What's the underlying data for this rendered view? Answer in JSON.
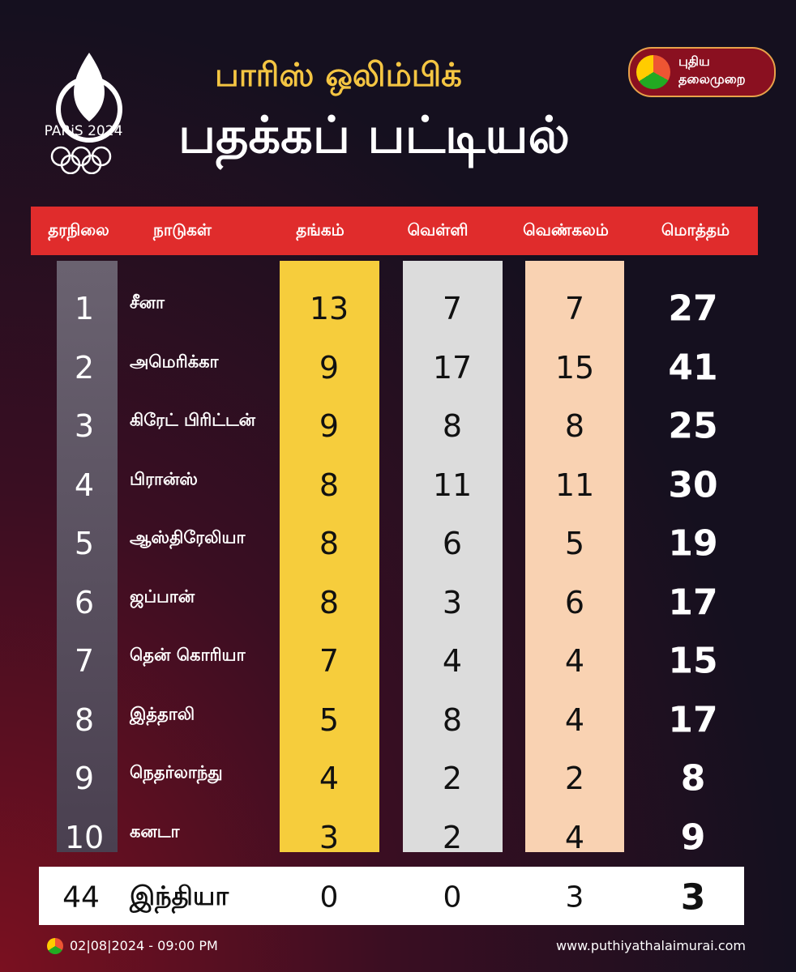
{
  "header": {
    "logo_text": "PARiS 2024",
    "title_line1": "பாரிஸ் ஒலிம்பிக்",
    "title_line2": "பதக்கப் பட்டியல்",
    "brand_line1": "புதிய",
    "brand_line2": "தலைமுறை"
  },
  "table": {
    "columns": [
      "தரநிலை",
      "நாடுகள்",
      "தங்கம்",
      "வெள்ளி",
      "வெண்கலம்",
      "மொத்தம்"
    ],
    "rows": [
      [
        1,
        "சீனா",
        13,
        7,
        7,
        27
      ],
      [
        2,
        "அமெரிக்கா",
        9,
        17,
        15,
        41
      ],
      [
        3,
        "கிரேட் பிரிட்டன்",
        9,
        8,
        8,
        25
      ],
      [
        4,
        "பிரான்ஸ்",
        8,
        11,
        11,
        30
      ],
      [
        5,
        "ஆஸ்திரேலியா",
        8,
        6,
        5,
        19
      ],
      [
        6,
        "ஜப்பான்",
        8,
        3,
        6,
        17
      ],
      [
        7,
        "தென் கொரியா",
        7,
        4,
        4,
        15
      ],
      [
        8,
        "இத்தாலி",
        5,
        8,
        4,
        17
      ],
      [
        9,
        "நெதர்லாந்து",
        4,
        2,
        2,
        8
      ],
      [
        10,
        "கனடா",
        3,
        2,
        4,
        9
      ]
    ],
    "highlight_row": [
      44,
      "இந்தியா",
      0,
      0,
      3,
      3
    ]
  },
  "footer": {
    "date": "02|08|2024 - 09:00 PM",
    "website": "www.puthiyathalaimurai.com"
  }
}
